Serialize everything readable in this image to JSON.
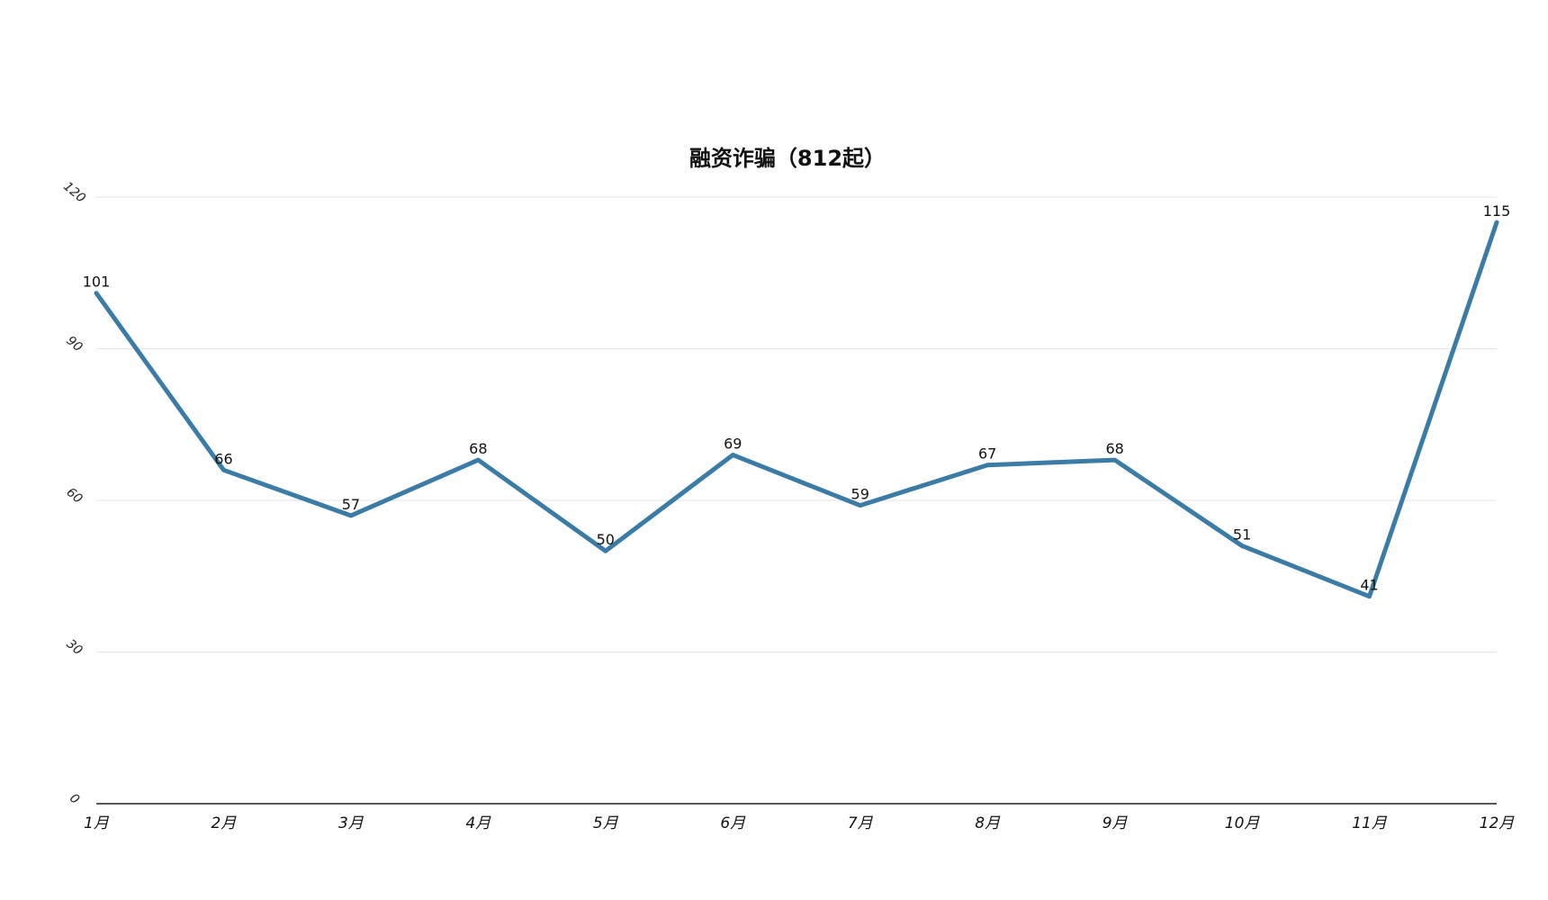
{
  "chart_data": {
    "type": "line",
    "title": "融资诈骗（812起）",
    "xlabel": "",
    "ylabel": "",
    "categories": [
      "1月",
      "2月",
      "3月",
      "4月",
      "5月",
      "6月",
      "7月",
      "8月",
      "9月",
      "10月",
      "11月",
      "12月"
    ],
    "series": [
      {
        "values": [
          101,
          66,
          57,
          68,
          50,
          69,
          59,
          67,
          68,
          51,
          41,
          115
        ],
        "color": "#3a7ca5"
      }
    ],
    "ylim": [
      0,
      120
    ],
    "yticks": [
      0,
      30,
      60,
      90,
      120
    ],
    "grid": true,
    "legend": "none",
    "data_labels": true
  }
}
